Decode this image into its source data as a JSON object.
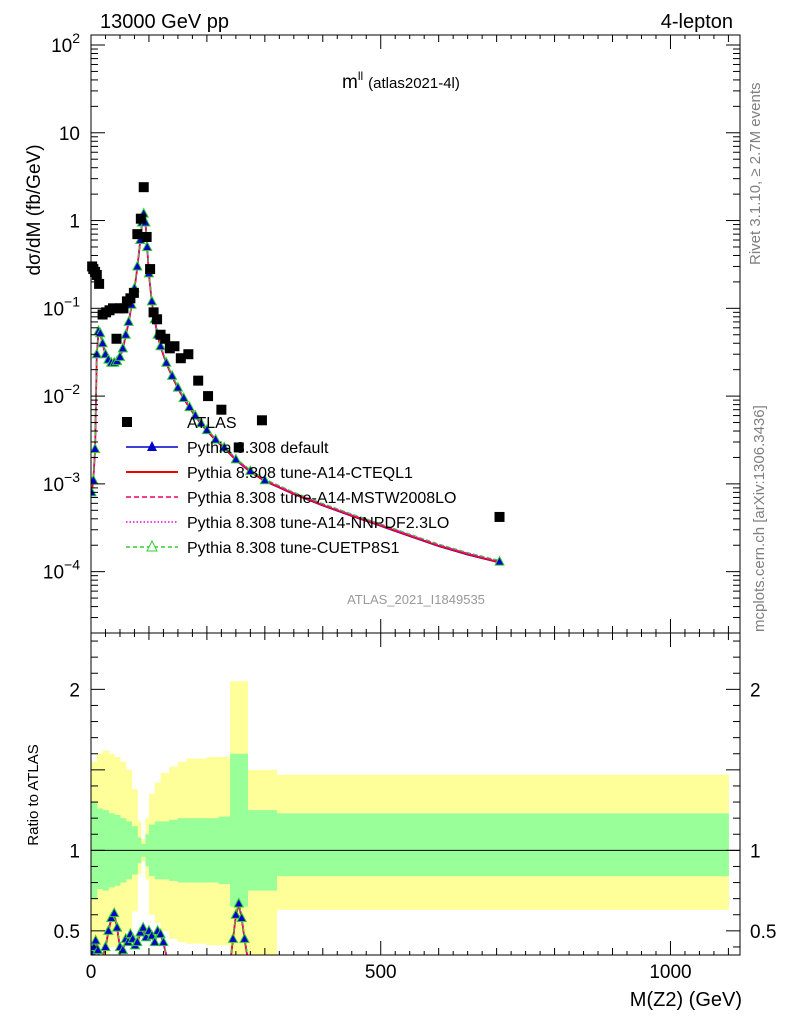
{
  "header": {
    "left": "13000 GeV pp",
    "right": "4-lepton"
  },
  "side_labels": {
    "rivet": "Rivet 3.1.10, ≥ 2.7M events",
    "mcplots": "mcplots.cern.ch [arXiv:1306.3436]"
  },
  "plot_label": {
    "main": "m",
    "sup": "ll",
    "sub": "(atlas2021-4l)"
  },
  "watermark": "ATLAS_2021_I1849535",
  "colors": {
    "data": "#000000",
    "default": "#0000cc",
    "cteql1": "#ee0000",
    "mstw": "#ee0066",
    "nnpdf": "#ee00ee",
    "cuetp8s1": "#33cc33",
    "band_inner": "#99ff99",
    "band_outer": "#ffff99"
  },
  "chart_data": [
    {
      "type": "scatter",
      "title": "",
      "xlabel": "M(Z2) (GeV)",
      "ylabel": "dσ/dM (fb/GeV)",
      "xlim": [
        0,
        1120
      ],
      "ylim": [
        2e-05,
        130
      ],
      "yscale": "log",
      "x_ticks": [
        0,
        500,
        1000
      ],
      "y_ticks": [
        {
          "value": 0.0001,
          "base": "10",
          "exp": "−4"
        },
        {
          "value": 0.001,
          "base": "10",
          "exp": "−3"
        },
        {
          "value": 0.01,
          "base": "10",
          "exp": "−2"
        },
        {
          "value": 0.1,
          "base": "10",
          "exp": "−1"
        },
        {
          "value": 1,
          "base": "1",
          "exp": ""
        },
        {
          "value": 10,
          "base": "10",
          "exp": ""
        },
        {
          "value": 100,
          "base": "10",
          "exp": "2"
        }
      ],
      "legend_position": "center",
      "legend": [
        {
          "label": "ATLAS",
          "key": "data",
          "style": "square"
        },
        {
          "label": "Pythia 8.308 default",
          "key": "default",
          "style": "line-triangle"
        },
        {
          "label": "Pythia 8.308 tune-A14-CTEQL1",
          "key": "cteql1",
          "style": "line"
        },
        {
          "label": "Pythia 8.308 tune-A14-MSTW2008LO",
          "key": "mstw",
          "style": "dashed"
        },
        {
          "label": "Pythia 8.308 tune-A14-NNPDF2.3LO",
          "key": "nnpdf",
          "style": "dotted"
        },
        {
          "label": "Pythia 8.308 tune-CUETP8S1",
          "key": "cuetp8s1",
          "style": "dashed-open-triangle"
        }
      ],
      "data_points": {
        "x": [
          2,
          4,
          7,
          10,
          14,
          20,
          26,
          32,
          38,
          44,
          50,
          56,
          62,
          68,
          74,
          80,
          86,
          91,
          96,
          102,
          108,
          114,
          120,
          128,
          136,
          144,
          155,
          168,
          185,
          202,
          225,
          255,
          295,
          705
        ],
        "y": [
          0.3,
          0.28,
          0.26,
          0.24,
          0.19,
          0.085,
          0.09,
          0.095,
          0.1,
          0.045,
          0.1,
          0.1,
          0.12,
          0.13,
          0.15,
          0.7,
          1.05,
          2.4,
          0.65,
          0.28,
          0.09,
          0.075,
          0.05,
          0.045,
          0.035,
          0.037,
          0.027,
          0.03,
          0.015,
          0.01,
          0.007,
          0.0026,
          0.0053,
          0.00042
        ]
      },
      "mc_curve": {
        "x": [
          1,
          4,
          7,
          10,
          13,
          16,
          20,
          25,
          30,
          35,
          40,
          45,
          50,
          55,
          60,
          65,
          70,
          75,
          80,
          85,
          88,
          91,
          94,
          97,
          100,
          105,
          110,
          115,
          120,
          130,
          140,
          150,
          160,
          170,
          180,
          190,
          200,
          215,
          230,
          250,
          275,
          300,
          350,
          400,
          450,
          500,
          550,
          600,
          650,
          705
        ],
        "y": [
          0.0008,
          0.0011,
          0.0025,
          0.03,
          0.055,
          0.052,
          0.04,
          0.03,
          0.026,
          0.024,
          0.024,
          0.025,
          0.028,
          0.035,
          0.05,
          0.07,
          0.11,
          0.17,
          0.3,
          0.6,
          0.95,
          1.2,
          0.95,
          0.5,
          0.25,
          0.12,
          0.075,
          0.05,
          0.037,
          0.024,
          0.017,
          0.0125,
          0.0095,
          0.0075,
          0.006,
          0.0049,
          0.0041,
          0.0032,
          0.0026,
          0.0019,
          0.0014,
          0.0011,
          0.00078,
          0.00058,
          0.00044,
          0.00034,
          0.00026,
          0.0002,
          0.00016,
          0.00013
        ]
      }
    },
    {
      "type": "line",
      "title": "",
      "xlabel": "M(Z2) (GeV)",
      "ylabel": "Ratio to ATLAS",
      "xlim": [
        0,
        1120
      ],
      "ylim": [
        0.35,
        2.35
      ],
      "y_ticks": [
        0.5,
        1,
        2
      ],
      "x_ticks": [
        0,
        500,
        1000
      ],
      "reference_line": 1,
      "uncertainty_bins": [
        {
          "x0": 0,
          "x1": 10,
          "inner": [
            0.7,
            1.3
          ],
          "outer": [
            0.35,
            1.55
          ]
        },
        {
          "x0": 10,
          "x1": 20,
          "inner": [
            0.76,
            1.26
          ],
          "outer": [
            0.4,
            1.6
          ]
        },
        {
          "x0": 20,
          "x1": 30,
          "inner": [
            0.75,
            1.25
          ],
          "outer": [
            0.35,
            1.62
          ]
        },
        {
          "x0": 30,
          "x1": 40,
          "inner": [
            0.77,
            1.23
          ],
          "outer": [
            0.4,
            1.6
          ]
        },
        {
          "x0": 40,
          "x1": 50,
          "inner": [
            0.78,
            1.22
          ],
          "outer": [
            0.4,
            1.58
          ]
        },
        {
          "x0": 50,
          "x1": 60,
          "inner": [
            0.8,
            1.2
          ],
          "outer": [
            0.45,
            1.55
          ]
        },
        {
          "x0": 60,
          "x1": 70,
          "inner": [
            0.82,
            1.18
          ],
          "outer": [
            0.5,
            1.5
          ]
        },
        {
          "x0": 70,
          "x1": 80,
          "inner": [
            0.85,
            1.15
          ],
          "outer": [
            0.62,
            1.38
          ]
        },
        {
          "x0": 80,
          "x1": 86,
          "inner": [
            0.92,
            1.08
          ],
          "outer": [
            0.85,
            1.18
          ]
        },
        {
          "x0": 86,
          "x1": 94,
          "inner": [
            0.96,
            1.04
          ],
          "outer": [
            0.93,
            1.07
          ]
        },
        {
          "x0": 94,
          "x1": 100,
          "inner": [
            0.9,
            1.1
          ],
          "outer": [
            0.82,
            1.2
          ]
        },
        {
          "x0": 100,
          "x1": 110,
          "inner": [
            0.84,
            1.16
          ],
          "outer": [
            0.6,
            1.35
          ]
        },
        {
          "x0": 110,
          "x1": 120,
          "inner": [
            0.82,
            1.18
          ],
          "outer": [
            0.55,
            1.42
          ]
        },
        {
          "x0": 120,
          "x1": 135,
          "inner": [
            0.82,
            1.18
          ],
          "outer": [
            0.5,
            1.48
          ]
        },
        {
          "x0": 135,
          "x1": 150,
          "inner": [
            0.81,
            1.19
          ],
          "outer": [
            0.45,
            1.52
          ]
        },
        {
          "x0": 150,
          "x1": 165,
          "inner": [
            0.8,
            1.2
          ],
          "outer": [
            0.43,
            1.55
          ]
        },
        {
          "x0": 165,
          "x1": 180,
          "inner": [
            0.8,
            1.2
          ],
          "outer": [
            0.42,
            1.57
          ]
        },
        {
          "x0": 180,
          "x1": 200,
          "inner": [
            0.8,
            1.2
          ],
          "outer": [
            0.42,
            1.57
          ]
        },
        {
          "x0": 200,
          "x1": 220,
          "inner": [
            0.8,
            1.2
          ],
          "outer": [
            0.41,
            1.58
          ]
        },
        {
          "x0": 220,
          "x1": 240,
          "inner": [
            0.79,
            1.21
          ],
          "outer": [
            0.41,
            1.58
          ]
        },
        {
          "x0": 240,
          "x1": 270,
          "inner": [
            0.65,
            1.6
          ],
          "outer": [
            0.35,
            2.05
          ]
        },
        {
          "x0": 270,
          "x1": 320,
          "inner": [
            0.75,
            1.25
          ],
          "outer": [
            0.35,
            1.5
          ]
        },
        {
          "x0": 320,
          "x1": 1100,
          "inner": [
            0.84,
            1.23
          ],
          "outer": [
            0.63,
            1.47
          ]
        }
      ],
      "ratio_curve": {
        "x": [
          2,
          5,
          8,
          12,
          16,
          20,
          25,
          30,
          35,
          40,
          45,
          50,
          55,
          60,
          64,
          68,
          72,
          76,
          80,
          85,
          90,
          95,
          100,
          105,
          110,
          115,
          120,
          125,
          130,
          135,
          240,
          245,
          250,
          255,
          260,
          265,
          270,
          275
        ],
        "y": [
          0.36,
          0.4,
          0.44,
          0.38,
          0.3,
          0.34,
          0.4,
          0.5,
          0.58,
          0.61,
          0.52,
          0.4,
          0.38,
          0.45,
          0.43,
          0.48,
          0.45,
          0.41,
          0.43,
          0.49,
          0.52,
          0.46,
          0.5,
          0.47,
          0.43,
          0.5,
          0.48,
          0.43,
          0.35,
          0.3,
          0.3,
          0.45,
          0.6,
          0.67,
          0.58,
          0.45,
          0.34,
          0.3
        ]
      }
    }
  ]
}
